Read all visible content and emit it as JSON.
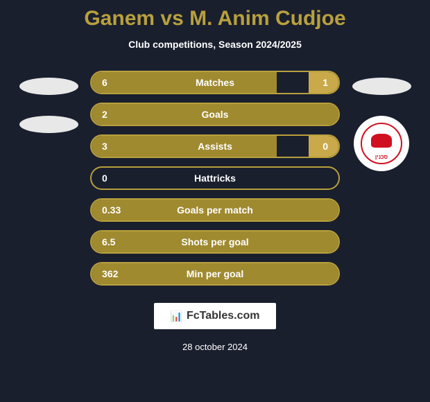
{
  "title": "Ganem vs M. Anim Cudjoe",
  "subtitle": "Club competitions, Season 2024/2025",
  "colors": {
    "background": "#1a1f2e",
    "accent": "#b8a03d",
    "primary_fill": "#a08a30",
    "secondary_fill": "#c9a94a",
    "border": "#b8a03d"
  },
  "stats": [
    {
      "label": "Matches",
      "left_value": "6",
      "right_value": "1",
      "left_pct": 75,
      "right_pct": 12
    },
    {
      "label": "Goals",
      "left_value": "2",
      "right_value": "",
      "left_pct": 100,
      "right_pct": 0
    },
    {
      "label": "Assists",
      "left_value": "3",
      "right_value": "0",
      "left_pct": 75,
      "right_pct": 12
    },
    {
      "label": "Hattricks",
      "left_value": "0",
      "right_value": "",
      "left_pct": 0,
      "right_pct": 0
    },
    {
      "label": "Goals per match",
      "left_value": "0.33",
      "right_value": "",
      "left_pct": 100,
      "right_pct": 0
    },
    {
      "label": "Shots per goal",
      "left_value": "6.5",
      "right_value": "",
      "left_pct": 100,
      "right_pct": 0
    },
    {
      "label": "Min per goal",
      "left_value": "362",
      "right_value": "",
      "left_pct": 100,
      "right_pct": 0
    }
  ],
  "footer": {
    "logo_text": "FcTables.com",
    "date": "28 october 2024"
  },
  "badge": {
    "text": "סכנין"
  }
}
